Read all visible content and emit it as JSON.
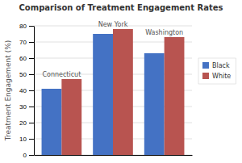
{
  "chart_data": {
    "type": "bar",
    "title": "Comparison of Treatment Engagement Rates",
    "ylabel": "Treatment Engagement (%)",
    "categories": [
      "Connecticut",
      "New York",
      "Washington"
    ],
    "series": [
      {
        "name": "Black",
        "color": "#4472C4",
        "values": [
          41,
          75,
          63
        ]
      },
      {
        "name": "White",
        "color": "#B85450",
        "values": [
          47,
          78,
          73
        ]
      }
    ],
    "ylim": [
      0,
      80
    ],
    "yticks": [
      0,
      10,
      20,
      30,
      40,
      50,
      60,
      70,
      80
    ],
    "grid": true,
    "legend": "right",
    "tick_labels": "y"
  }
}
